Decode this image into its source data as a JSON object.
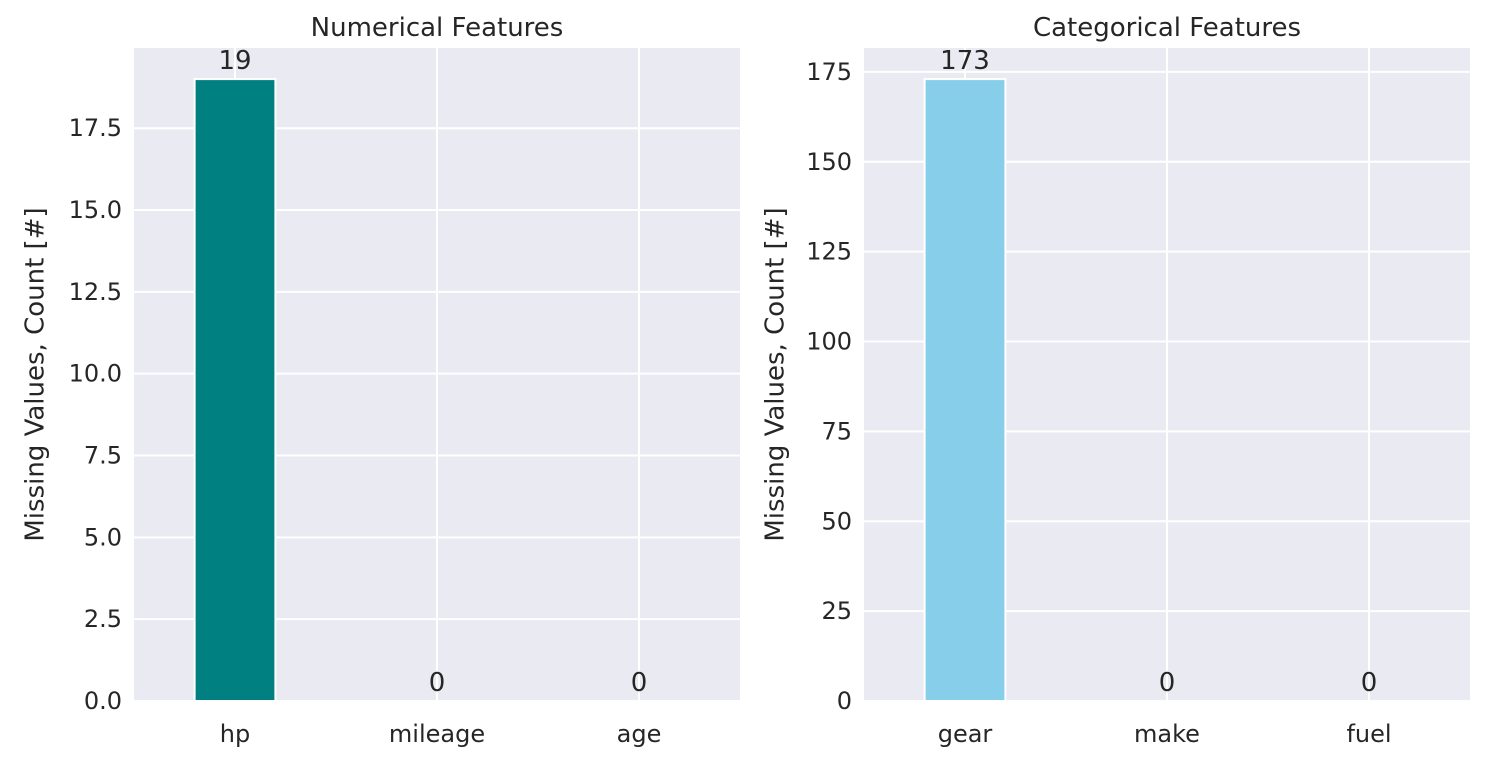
{
  "chart_data": [
    {
      "type": "bar",
      "title": "Numerical Features",
      "xlabel": "",
      "ylabel": "Missing Values, Count [#]",
      "categories": [
        "hp",
        "mileage",
        "age"
      ],
      "values": [
        19,
        0,
        0
      ],
      "data_labels": [
        "19",
        "0",
        "0"
      ],
      "ylim": [
        0,
        19.95
      ],
      "yticks": [
        0,
        2.5,
        5,
        7.5,
        10,
        12.5,
        15,
        17.5
      ],
      "ytick_labels": [
        "0.0",
        "2.5",
        "5.0",
        "7.5",
        "10.0",
        "12.5",
        "15.0",
        "17.5"
      ],
      "color": "#008080",
      "grid": true
    },
    {
      "type": "bar",
      "title": "Categorical Features",
      "xlabel": "",
      "ylabel": "Missing Values, Count [#]",
      "categories": [
        "gear",
        "make",
        "fuel"
      ],
      "values": [
        173,
        0,
        0
      ],
      "data_labels": [
        "173",
        "0",
        "0"
      ],
      "ylim": [
        0,
        181.65
      ],
      "yticks": [
        0,
        25,
        50,
        75,
        100,
        125,
        150,
        175
      ],
      "ytick_labels": [
        "0",
        "25",
        "50",
        "75",
        "100",
        "125",
        "150",
        "175"
      ],
      "color": "#87ceeb",
      "grid": true
    }
  ],
  "colors": {
    "axes_background": "#eaeaf2",
    "grid": "#ffffff",
    "text": "#262626"
  }
}
